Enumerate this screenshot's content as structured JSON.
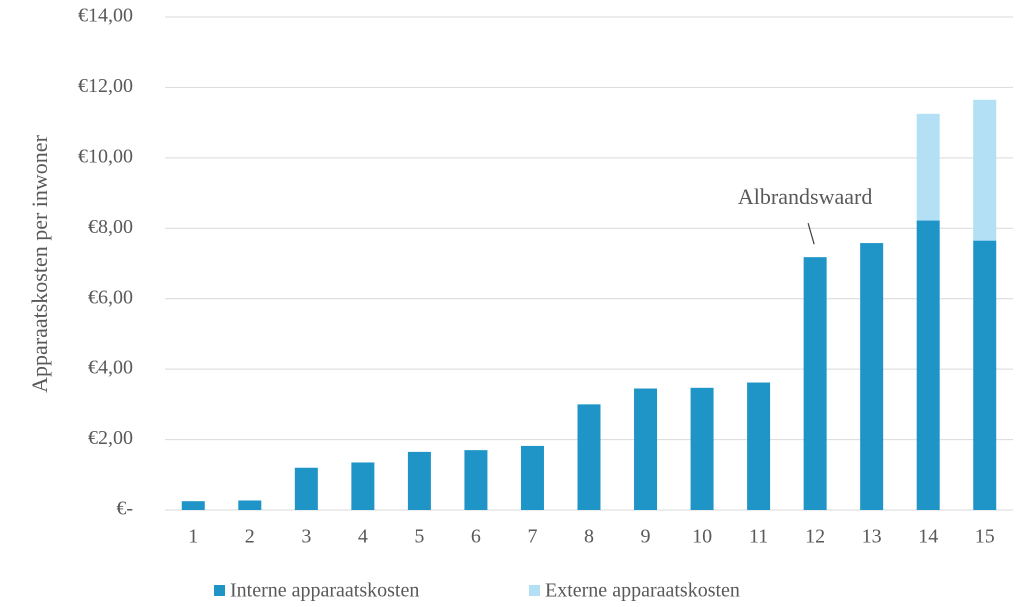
{
  "chart_data": {
    "type": "stacked_bar",
    "y_label": "Apparaatskosten per inwoner",
    "categories": [
      "1",
      "2",
      "3",
      "4",
      "5",
      "6",
      "7",
      "8",
      "9",
      "10",
      "11",
      "12",
      "13",
      "14",
      "15"
    ],
    "series": [
      {
        "name": "Interne apparaatskosten",
        "color": "#1f94c7",
        "values": [
          0.25,
          0.27,
          1.2,
          1.35,
          1.65,
          1.7,
          1.82,
          3.0,
          3.45,
          3.47,
          3.62,
          7.18,
          7.58,
          8.22,
          7.65
        ]
      },
      {
        "name": "Externe apparaatskosten",
        "color": "#b3e0f4",
        "values": [
          0,
          0,
          0,
          0,
          0,
          0,
          0,
          0,
          0,
          0,
          0,
          0,
          0,
          3.03,
          4.0
        ]
      }
    ],
    "ylim": [
      0,
      14
    ],
    "yticks": [
      {
        "value": 0,
        "label": "€-"
      },
      {
        "value": 2,
        "label": "€2,00"
      },
      {
        "value": 4,
        "label": "€4,00"
      },
      {
        "value": 6,
        "label": "€6,00"
      },
      {
        "value": 8,
        "label": "€8,00"
      },
      {
        "value": 10,
        "label": "€10,00"
      },
      {
        "value": 12,
        "label": "€12,00"
      },
      {
        "value": 14,
        "label": "€14,00"
      }
    ],
    "grid": true,
    "annotation": {
      "text": "Albrandswaard",
      "category_index": 11
    },
    "legend": "bottom"
  }
}
